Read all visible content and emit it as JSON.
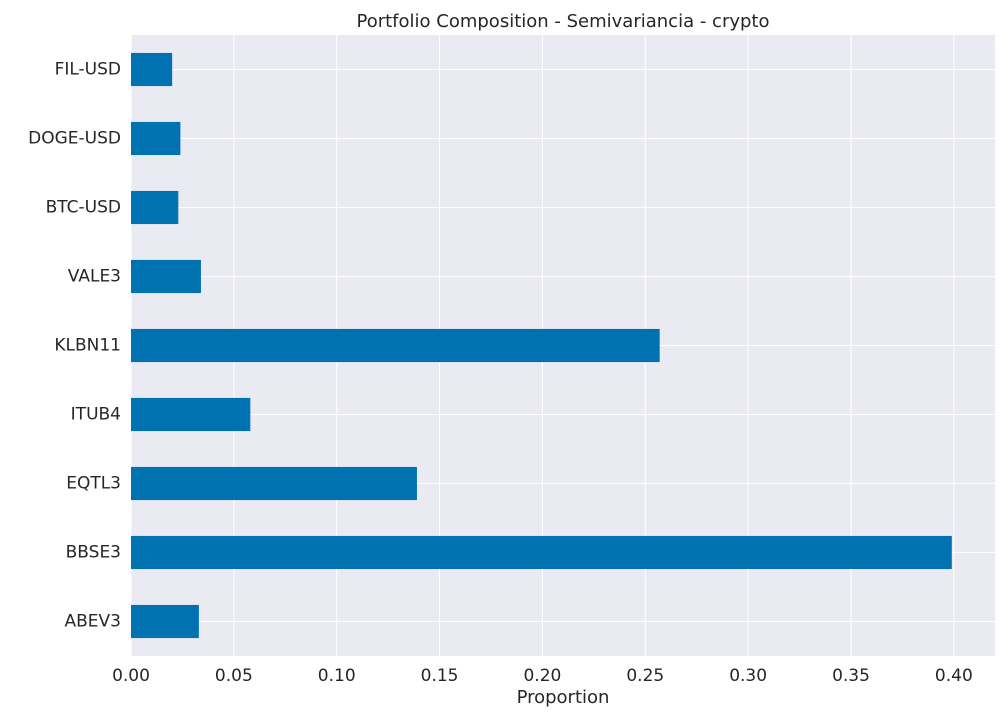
{
  "colors": {
    "bar": "#0072b2",
    "plot_background": "#eaeaf2",
    "grid": "#ffffff",
    "text": "#262626"
  },
  "chart_data": {
    "type": "bar",
    "orientation": "horizontal",
    "title": "Portfolio Composition - Semivariancia - crypto",
    "xlabel": "Proportion",
    "ylabel": "",
    "categories": [
      "ABEV3",
      "BBSE3",
      "EQTL3",
      "ITUB4",
      "KLBN11",
      "VALE3",
      "BTC-USD",
      "DOGE-USD",
      "FIL-USD"
    ],
    "values": [
      0.033,
      0.399,
      0.139,
      0.058,
      0.257,
      0.034,
      0.023,
      0.024,
      0.02
    ],
    "xlim": [
      0.0,
      0.42
    ],
    "xticks": [
      0.0,
      0.05,
      0.1,
      0.15,
      0.2,
      0.25,
      0.3,
      0.35,
      0.4
    ],
    "xtick_labels": [
      "0.00",
      "0.05",
      "0.10",
      "0.15",
      "0.20",
      "0.25",
      "0.30",
      "0.35",
      "0.40"
    ],
    "grid": true,
    "legend": false
  }
}
